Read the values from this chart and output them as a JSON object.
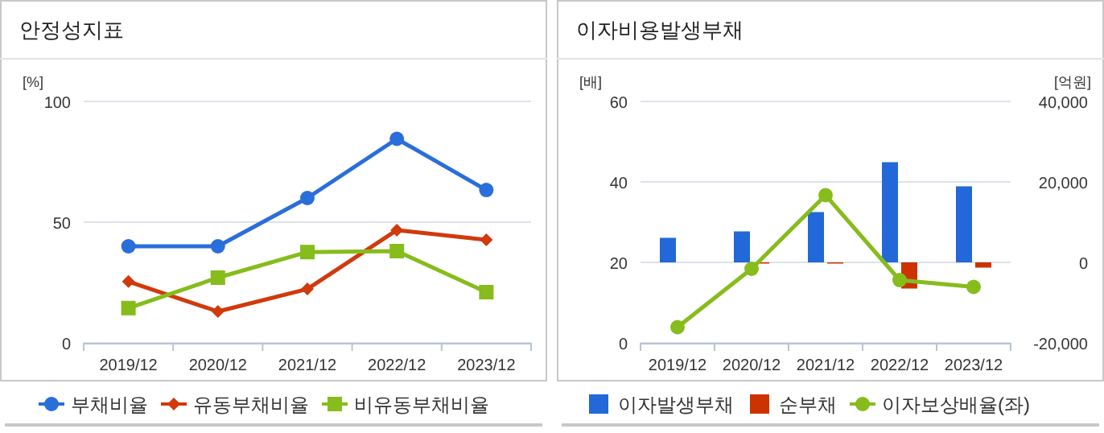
{
  "chart_data": [
    {
      "type": "line",
      "title": "안정성지표",
      "ylabel": "[%]",
      "categories": [
        "2019/12",
        "2020/12",
        "2021/12",
        "2022/12",
        "2023/12"
      ],
      "ylim": [
        0,
        100
      ],
      "yticks": [
        0,
        50,
        100
      ],
      "grid": "y",
      "legend": "bottom",
      "series": [
        {
          "name": "부채비율",
          "color": "#2a6edb",
          "marker": "circle",
          "values": [
            40,
            40,
            60,
            84.5,
            63.3
          ]
        },
        {
          "name": "유동부채비율",
          "color": "#d03a0c",
          "marker": "diamond",
          "values": [
            25.4,
            13,
            22.3,
            46.7,
            42.7
          ]
        },
        {
          "name": "비유동부채비율",
          "color": "#86bc1c",
          "marker": "square",
          "values": [
            14.4,
            27,
            37.6,
            38,
            21
          ]
        }
      ]
    },
    {
      "type": "bar",
      "title": "이자비용발생부채",
      "ylabel": "[배]",
      "y2label": "[억원]",
      "categories": [
        "2019/12",
        "2020/12",
        "2021/12",
        "2022/12",
        "2023/12"
      ],
      "ylim": [
        0,
        60
      ],
      "yticks": [
        0,
        20,
        40,
        60
      ],
      "y2lim": [
        -20000,
        40000
      ],
      "y2ticks": [
        {
          "value": -20000,
          "label": "-20,000"
        },
        0,
        {
          "value": 20000,
          "label": "20,000"
        },
        {
          "value": 40000,
          "label": "40,000"
        }
      ],
      "grid": "y",
      "legend": "bottom",
      "series": [
        {
          "name": "이자발생부채",
          "color": "#2268d8",
          "axis": "y2",
          "values": [
            6100,
            7700,
            12500,
            24900,
            18900
          ]
        },
        {
          "name": "순부채",
          "color": "#cc3300",
          "axis": "y2",
          "values": [
            null,
            -300,
            -300,
            -6500,
            -1300
          ]
        },
        {
          "name": "이자보상배율(좌)",
          "type": "line",
          "color": "#86bc1c",
          "marker": "circle",
          "values": [
            3.9,
            18.4,
            36.7,
            15.6,
            13.9
          ]
        }
      ]
    }
  ]
}
